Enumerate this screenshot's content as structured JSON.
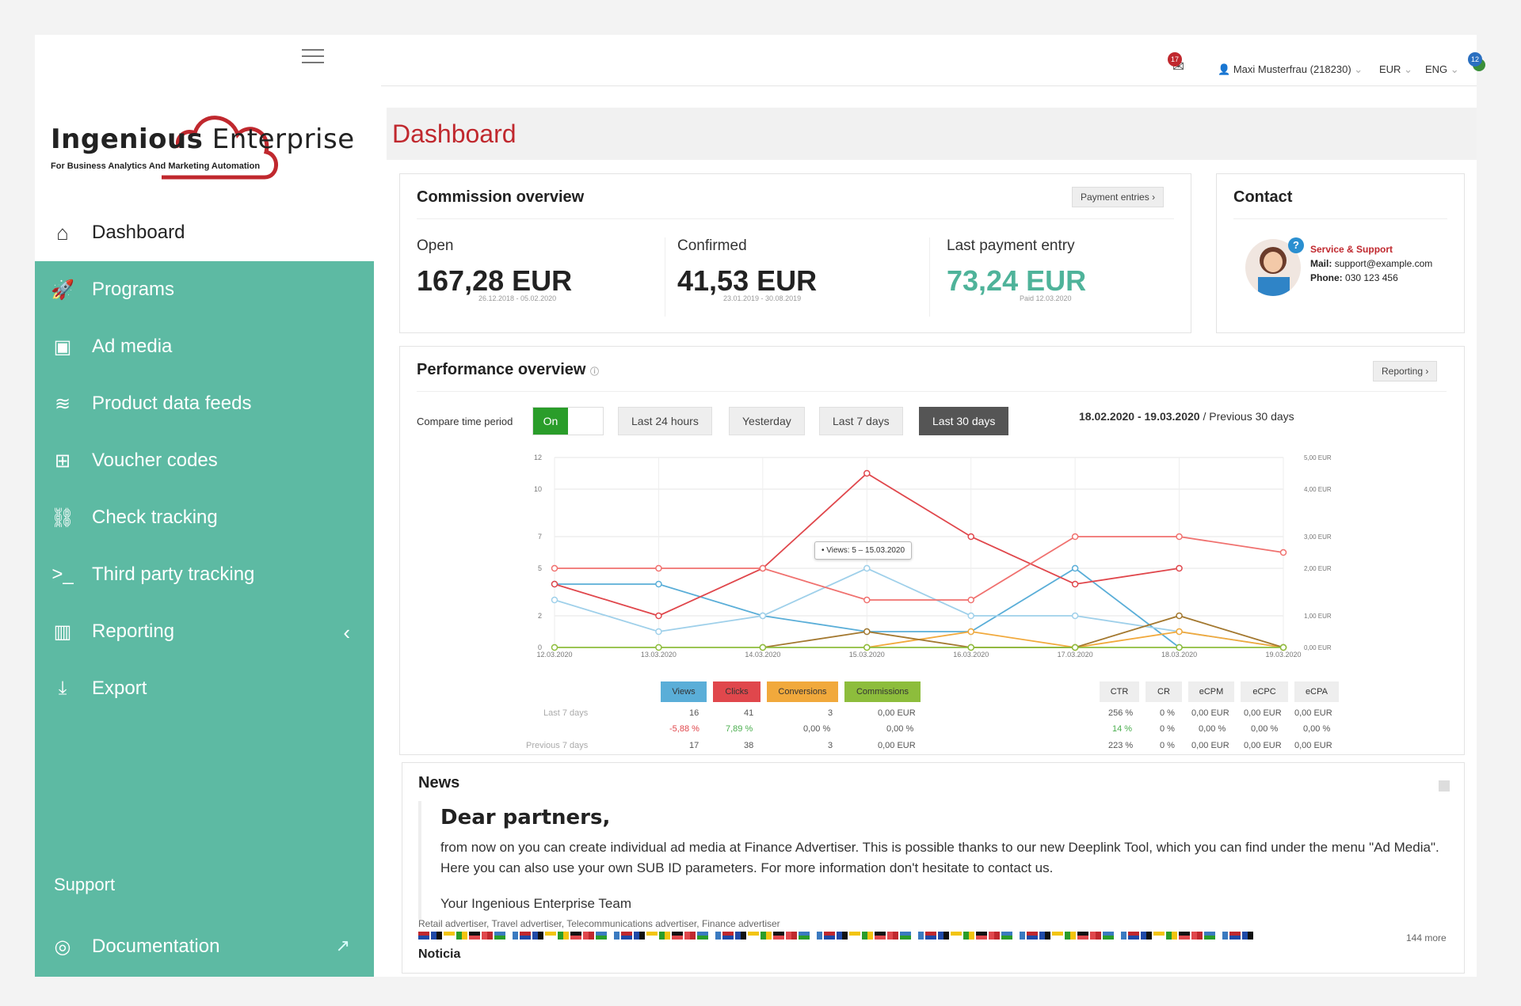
{
  "brand": {
    "name_bold": "Ingenious",
    "name_light": " Enterprise",
    "tagline": "For Business Analytics And Marketing Automation"
  },
  "sidebar": {
    "dashboard": "Dashboard",
    "items": [
      {
        "label": "Programs",
        "icon": "rocket-icon",
        "glyph": "🚀"
      },
      {
        "label": "Ad media",
        "icon": "image-icon",
        "glyph": "▣"
      },
      {
        "label": "Product data feeds",
        "icon": "database-icon",
        "glyph": "≋"
      },
      {
        "label": "Voucher codes",
        "icon": "cart-icon",
        "glyph": "⊞"
      },
      {
        "label": "Check tracking",
        "icon": "link-icon",
        "glyph": "⛓"
      },
      {
        "label": "Third party tracking",
        "icon": "terminal-icon",
        "glyph": ">_"
      },
      {
        "label": "Reporting",
        "icon": "bar-chart-icon",
        "glyph": "▥"
      },
      {
        "label": "Export",
        "icon": "download-icon",
        "glyph": "⤓"
      }
    ],
    "support": "Support",
    "documentation": "Documentation"
  },
  "topbar": {
    "messages_count": "17",
    "user": "Maxi Musterfrau (218230)",
    "currency": "EUR",
    "language": "ENG",
    "notifications_count": "12"
  },
  "page_title": "Dashboard",
  "commission": {
    "title": "Commission overview",
    "payment_entries": "Payment entries",
    "open_label": "Open",
    "open_value": "167,28 EUR",
    "open_range": "26.12.2018 - 05.02.2020",
    "confirmed_label": "Confirmed",
    "confirmed_value": "41,53 EUR",
    "confirmed_range": "23.01.2019 - 30.08.2019",
    "last_label": "Last payment entry",
    "last_value": "73,24 EUR",
    "last_paid": "Paid 12.03.2020"
  },
  "contact": {
    "title": "Contact",
    "service": "Service & Support",
    "mail_label": "Mail:",
    "mail": "support@example.com",
    "phone_label": "Phone:",
    "phone": "030 123 456"
  },
  "performance": {
    "title": "Performance overview",
    "reporting": "Reporting",
    "compare_label": "Compare time period",
    "toggle": "On",
    "periods": [
      "Last 24 hours",
      "Yesterday",
      "Last 7 days",
      "Last 30 days"
    ],
    "date_range": "18.02.2020 - 19.03.2020",
    "compare_with": " / Previous 30 days",
    "tooltip": "• Views: 5 – 15.03.2020",
    "legend": [
      "Views",
      "Clicks",
      "Conversions",
      "Commissions"
    ],
    "kpis": [
      "CTR",
      "CR",
      "eCPM",
      "eCPC",
      "eCPA"
    ],
    "rows": {
      "last7_label": "Last 7 days",
      "prev7_label": "Previous 7 days",
      "last7": [
        "16",
        "41",
        "3",
        "0,00 EUR"
      ],
      "diff": [
        "-5,88 %",
        "7,89 %",
        "0,00 %",
        "0,00 %"
      ],
      "prev7": [
        "17",
        "38",
        "3",
        "0,00 EUR"
      ],
      "kpi_last7": [
        "256 %",
        "0 %",
        "0,00 EUR",
        "0,00 EUR",
        "0,00 EUR"
      ],
      "kpi_diff": [
        "14 %",
        "0 %",
        "0,00 %",
        "0,00 %",
        "0,00 %"
      ],
      "kpi_prev7": [
        "223 %",
        "0 %",
        "0,00 EUR",
        "0,00 EUR",
        "0,00 EUR"
      ]
    }
  },
  "chart_data": {
    "type": "line",
    "x": [
      "12.03.2020",
      "13.03.2020",
      "14.03.2020",
      "15.03.2020",
      "16.03.2020",
      "17.03.2020",
      "18.03.2020",
      "19.03.2020"
    ],
    "y_left_ticks": [
      "0",
      "2",
      "5",
      "7",
      "10",
      "12"
    ],
    "y_right_ticks": [
      "0,00 EUR",
      "1,00 EUR",
      "2,00 EUR",
      "3,00 EUR",
      "4,00 EUR",
      "5,00 EUR"
    ],
    "ylim": [
      0,
      12
    ],
    "series": [
      {
        "name": "Views",
        "color": "#5aaed8",
        "values": [
          4,
          4,
          2,
          1,
          1,
          5,
          0,
          null
        ]
      },
      {
        "name": "Views (previous)",
        "color": "#9fd0ea",
        "values": [
          3,
          1,
          2,
          5,
          2,
          2,
          1,
          0
        ]
      },
      {
        "name": "Clicks",
        "color": "#e0474c",
        "values": [
          4,
          2,
          5,
          11,
          7,
          4,
          5,
          null
        ]
      },
      {
        "name": "Clicks (previous)",
        "color": "#f0716f",
        "values": [
          5,
          5,
          5,
          3,
          3,
          7,
          7,
          6
        ]
      },
      {
        "name": "Conversions",
        "color": "#f1a93c",
        "values": [
          null,
          null,
          null,
          0,
          1,
          0,
          1,
          0
        ]
      },
      {
        "name": "Conversions (previous)",
        "color": "#a3782f",
        "values": [
          null,
          null,
          0,
          1,
          0,
          0,
          2,
          0
        ]
      },
      {
        "name": "Commissions",
        "color": "#8dbd3c",
        "values": [
          0,
          0,
          0,
          0,
          0,
          0,
          0,
          0
        ]
      }
    ]
  },
  "news": {
    "title": "News",
    "heading": "Dear partners,",
    "body": "from now on you can create individual ad media at Finance Advertiser. This is possible thanks to our new Deeplink Tool, which you can find under the menu \"Ad Media\". Here you can also use your own SUB ID parameters. For more information don't hesitate to contact us.",
    "signature": "Your Ingenious Enterprise Team",
    "tags": "Retail advertiser, Travel advertiser, Telecommunications advertiser, Finance advertiser",
    "more": "144 more",
    "next_title": "Noticia"
  },
  "colors": {
    "accent": "#5dbaa3",
    "brand_red": "#c0282e",
    "kpi_green": "#4fb39a"
  }
}
